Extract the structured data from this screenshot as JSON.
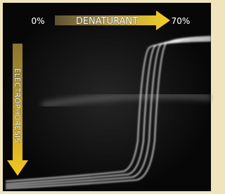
{
  "labels": {
    "start": "0%",
    "axis": "DENATURANT",
    "end": "70%",
    "vertical": "ELECTROPHORESIS"
  }
}
